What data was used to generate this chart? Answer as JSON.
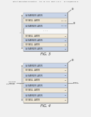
{
  "bg_color": "#f0f0f0",
  "header_text": "Patent Application Publication   Aug. 16, 2011  Sheet 7 of 8    US 2011/0094566 A1",
  "fig3_label": "FIG. 3",
  "fig4_label": "FIG. 4",
  "fig3_layers_top": [
    "A) BARRIER LAYER",
    "B) WELL LAYER",
    "A) BARRIER LAYER"
  ],
  "fig3_layers_top_nums": [
    "32",
    "34, 36",
    "32, 38"
  ],
  "fig3_layers_bottom": [
    "B) WELL LAYER",
    "A) BARRIER LAYER",
    "B) WELL LAYER",
    "A) BARRIER LAYER"
  ],
  "fig3_layers_bottom_nums": [
    "34",
    "32",
    "34",
    "32"
  ],
  "fig4_layers": [
    "A) BARRIER LAYER",
    "B) WELL LAYER",
    "A) BARRIER LAYER",
    "B) WELL LAYER",
    "A) BARRIER LAYER",
    "B) WELL LAYER",
    "A) BARRIER LAYER",
    "B) WELL LAYER"
  ],
  "fig4_layer_nums": [
    "32",
    "34",
    "32",
    "34",
    "32",
    "34",
    "32",
    "34"
  ],
  "barrier_color": "#c8d4e8",
  "well_color": "#f0e8d8",
  "border_color": "#666666",
  "text_color": "#222222",
  "num_color": "#444444",
  "dim_color": "#555555"
}
